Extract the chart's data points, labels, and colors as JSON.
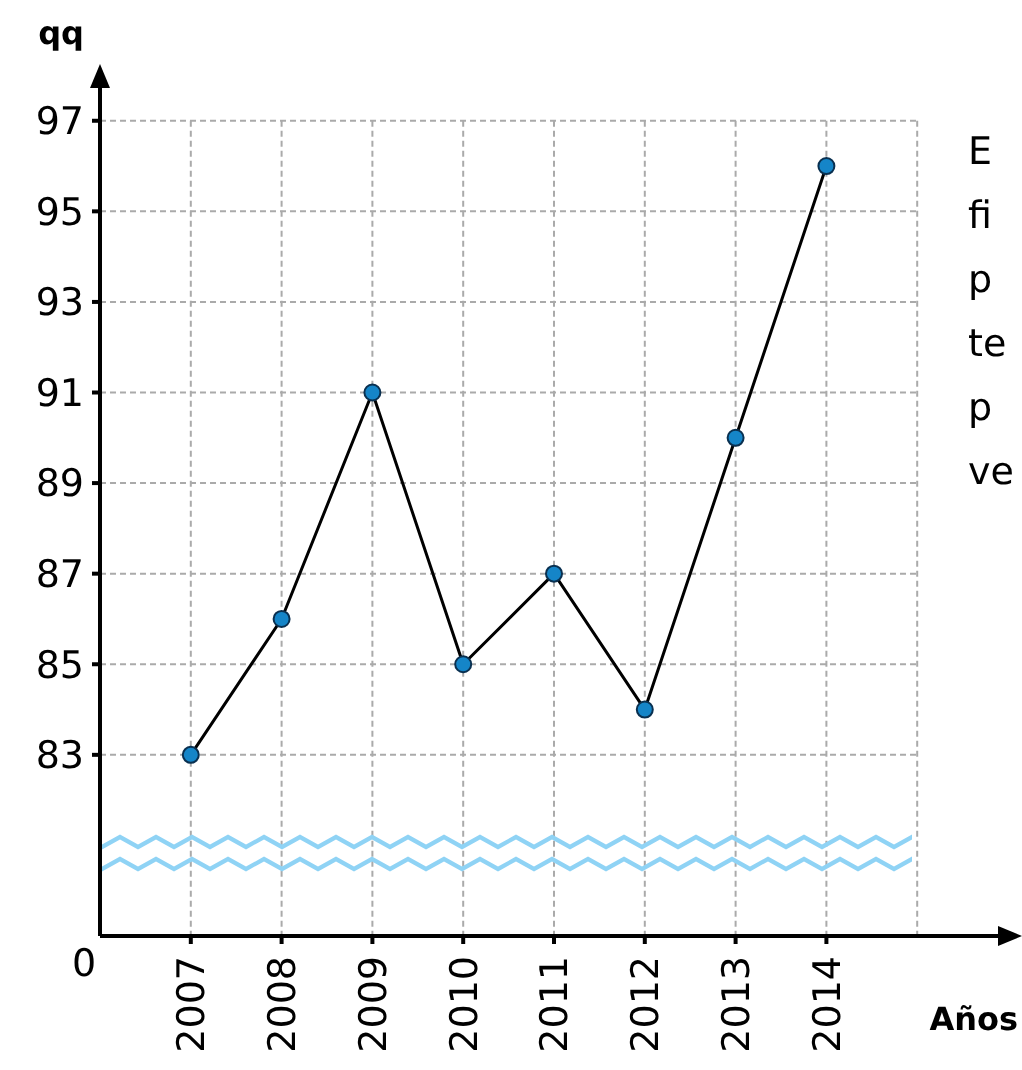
{
  "chart_data": {
    "type": "line",
    "xlabel": "Años",
    "ylabel": "qq",
    "categories": [
      "2007",
      "2008",
      "2009",
      "2010",
      "2011",
      "2012",
      "2013",
      "2014"
    ],
    "series": [
      {
        "color": "#000000",
        "values": [
          83,
          86,
          91,
          85,
          87,
          84,
          90,
          96
        ]
      }
    ],
    "ylim": [
      79,
      97.9
    ],
    "yticks": [
      83,
      85,
      87,
      89,
      91,
      93,
      95,
      97
    ],
    "grid": true,
    "marker": "circle",
    "line_style": "solid",
    "annotations": [
      "0",
      "E",
      "fi",
      "p",
      "te",
      "p",
      "ve"
    ]
  }
}
